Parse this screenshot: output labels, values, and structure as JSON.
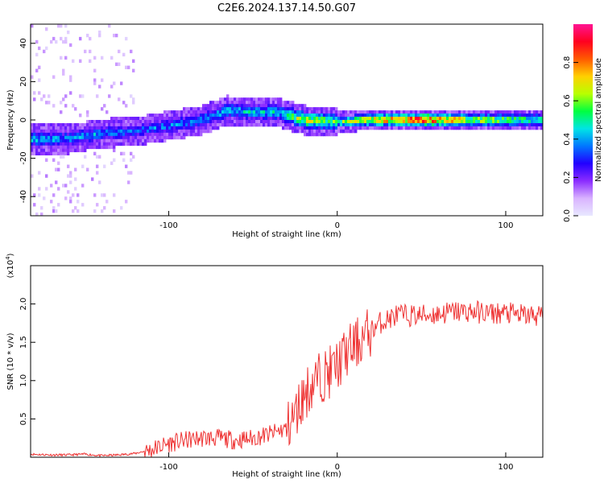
{
  "title": "C2E6.2024.137.14.50.G07",
  "chart_data": [
    {
      "type": "heatmap",
      "xlabel": "Height of straight line (km)",
      "ylabel": "Frequency (Hz)",
      "xlim": [
        -182,
        122
      ],
      "ylim": [
        -50,
        50
      ],
      "xticks": [
        -100,
        0,
        100
      ],
      "yticks": [
        -40,
        -20,
        0,
        20,
        40
      ],
      "colorbar": {
        "label": "Normalized spectral amplitude",
        "range": [
          0,
          1
        ],
        "ticks": [
          "0.0",
          "0.2",
          "0.4",
          "0.6",
          "0.8"
        ],
        "colors": [
          "#e8e8ff",
          "#d9b3ff",
          "#8b2cff",
          "#2200ff",
          "#0077ff",
          "#00e5e5",
          "#00ff40",
          "#b8ff00",
          "#ffd000",
          "#ff5a00",
          "#ff0020",
          "#ff1493"
        ]
      },
      "signal_track": [
        {
          "x": -182,
          "y": -10,
          "amp": 0.45
        },
        {
          "x": -160,
          "y": -10,
          "amp": 0.4
        },
        {
          "x": -140,
          "y": -7,
          "amp": 0.4
        },
        {
          "x": -120,
          "y": -6,
          "amp": 0.35
        },
        {
          "x": -100,
          "y": -3,
          "amp": 0.38
        },
        {
          "x": -80,
          "y": 0,
          "amp": 0.4
        },
        {
          "x": -65,
          "y": 5,
          "amp": 0.45
        },
        {
          "x": -50,
          "y": 4,
          "amp": 0.45
        },
        {
          "x": -35,
          "y": 4,
          "amp": 0.45
        },
        {
          "x": -20,
          "y": 0,
          "amp": 0.7
        },
        {
          "x": 0,
          "y": -1,
          "amp": 0.55
        },
        {
          "x": 20,
          "y": 0,
          "amp": 0.75
        },
        {
          "x": 50,
          "y": 0,
          "amp": 0.95
        },
        {
          "x": 80,
          "y": 0,
          "amp": 0.7
        },
        {
          "x": 100,
          "y": 0,
          "amp": 0.6
        },
        {
          "x": 122,
          "y": 0,
          "amp": 0.55
        }
      ]
    },
    {
      "type": "line",
      "xlabel": "Height of straight line (km)",
      "ylabel": "SNR (10 * v/v)",
      "yscale_label": "(x10",
      "yscale_exp": "4",
      "yscale_close": ")",
      "xlim": [
        -182,
        122
      ],
      "ylim": [
        0,
        2.5
      ],
      "xticks": [
        -100,
        0,
        100
      ],
      "yticks": [
        "0.5",
        "1.0",
        "1.5",
        "2.0"
      ],
      "color": "#ee3333",
      "series": [
        {
          "x": [
            -182,
            -170,
            -160,
            -150,
            -140,
            -130,
            -120,
            -110,
            -100,
            -90,
            -80,
            -70,
            -60,
            -50,
            -40,
            -30,
            -25,
            -20,
            -15,
            -10,
            -5,
            0,
            5,
            10,
            15,
            20,
            25,
            30,
            35,
            40,
            50,
            60,
            70,
            80,
            90,
            100,
            110,
            122
          ],
          "values": [
            0.04,
            0.03,
            0.03,
            0.04,
            0.02,
            0.03,
            0.05,
            0.1,
            0.18,
            0.22,
            0.25,
            0.25,
            0.22,
            0.25,
            0.3,
            0.38,
            0.55,
            0.8,
            0.95,
            1.05,
            1.1,
            1.2,
            1.35,
            1.45,
            1.55,
            1.65,
            1.75,
            1.8,
            1.85,
            1.85,
            1.85,
            1.87,
            1.9,
            1.9,
            1.88,
            1.88,
            1.85,
            1.85
          ]
        }
      ]
    }
  ]
}
